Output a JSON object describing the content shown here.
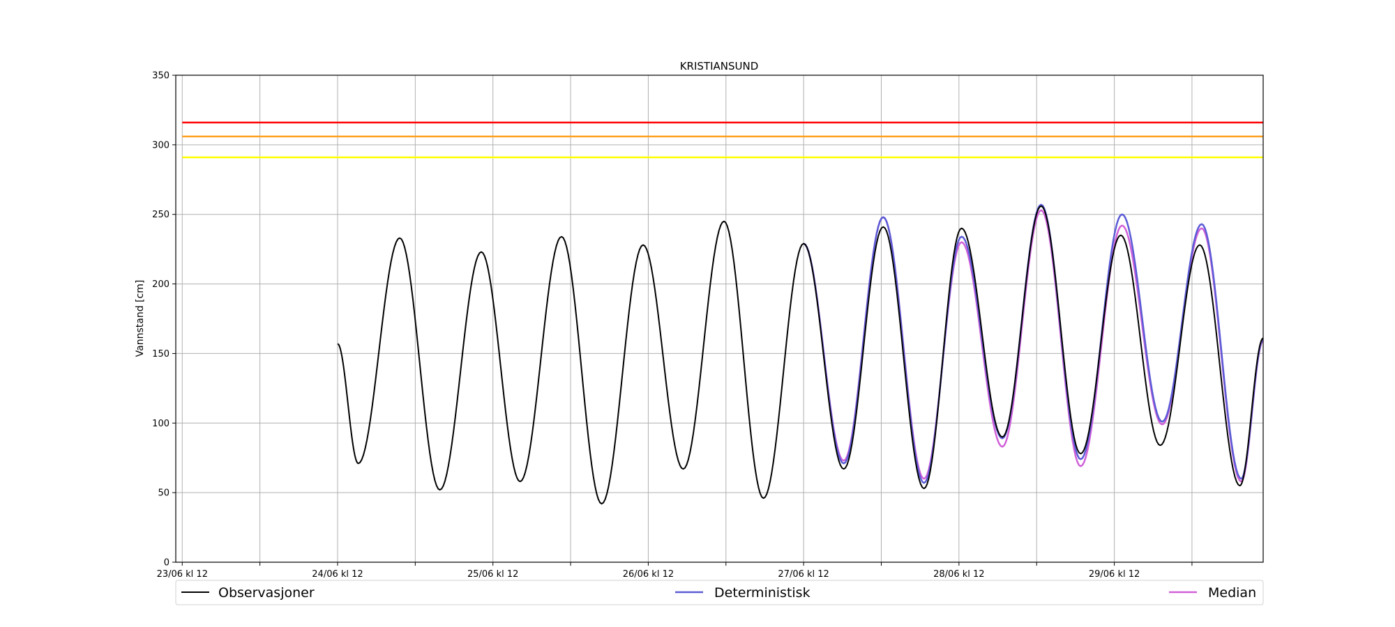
{
  "chart_data": {
    "type": "line",
    "title": "KRISTIANSUND",
    "ylabel": "Vannstand [cm]",
    "xlabel": "",
    "ylim": [
      0,
      350
    ],
    "yticks": [
      0,
      50,
      100,
      150,
      200,
      250,
      300,
      350
    ],
    "x_range_hours_from_23_06_kl_12": [
      -1,
      167
    ],
    "xtick_labels": [
      "23/06 kl 12",
      "24/06 kl 12",
      "25/06 kl 12",
      "26/06 kl 12",
      "27/06 kl 12",
      "28/06 kl 12",
      "29/06 kl 12"
    ],
    "grid": true,
    "legend_placement": "bottom",
    "thresholds": [
      {
        "value": 316,
        "color": "#ff0000"
      },
      {
        "value": 306,
        "color": "#ffa020"
      },
      {
        "value": 291,
        "color": "#ffff00"
      }
    ],
    "series": [
      {
        "name": "Observasjoner",
        "color": "#000000",
        "extrema": [
          [
            24,
            157
          ],
          [
            27.2,
            71
          ],
          [
            33.6,
            233
          ],
          [
            39.8,
            52
          ],
          [
            46.2,
            223
          ],
          [
            52.2,
            58
          ],
          [
            58.6,
            234
          ],
          [
            64.8,
            42
          ],
          [
            71.2,
            228
          ],
          [
            77.4,
            67
          ],
          [
            83.7,
            245
          ],
          [
            89.8,
            46
          ],
          [
            96,
            229
          ],
          [
            102.2,
            67
          ],
          [
            108.3,
            241
          ],
          [
            114.6,
            53
          ],
          [
            120.4,
            240
          ],
          [
            126.7,
            90
          ],
          [
            132.7,
            256
          ],
          [
            138.8,
            78
          ],
          [
            145,
            235
          ],
          [
            151.1,
            84
          ],
          [
            157.2,
            228
          ],
          [
            163.4,
            55
          ],
          [
            167,
            161
          ]
        ]
      },
      {
        "name": "Deterministisk",
        "color": "#5b5bd6",
        "extrema": [
          [
            96,
            229
          ],
          [
            102.2,
            71
          ],
          [
            108.3,
            248
          ],
          [
            114.6,
            57
          ],
          [
            120.4,
            234
          ],
          [
            126.7,
            89
          ],
          [
            132.7,
            257
          ],
          [
            138.8,
            74
          ],
          [
            145.2,
            250
          ],
          [
            151.4,
            101
          ],
          [
            157.5,
            243
          ],
          [
            163.6,
            60
          ],
          [
            167,
            160
          ]
        ]
      },
      {
        "name": "Median",
        "color": "#d060d8",
        "extrema": [
          [
            96,
            229
          ],
          [
            102.2,
            73
          ],
          [
            108.3,
            248
          ],
          [
            114.6,
            60
          ],
          [
            120.4,
            230
          ],
          [
            126.7,
            83
          ],
          [
            132.7,
            253
          ],
          [
            138.8,
            69
          ],
          [
            145.2,
            242
          ],
          [
            151.4,
            99
          ],
          [
            157.5,
            240
          ],
          [
            163.6,
            58
          ],
          [
            167,
            159
          ]
        ]
      }
    ]
  }
}
